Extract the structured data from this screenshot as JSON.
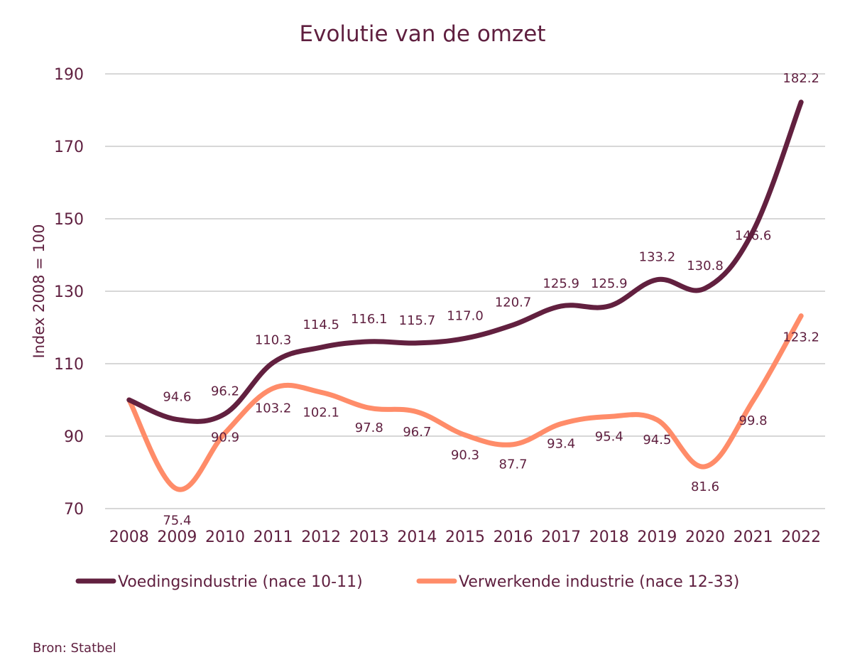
{
  "chart_data": {
    "type": "line",
    "title": "Evolutie van de omzet",
    "xlabel": "",
    "ylabel": "Index 2008 = 100",
    "ylim": [
      70,
      190
    ],
    "yticks": [
      70,
      90,
      110,
      130,
      150,
      170,
      190
    ],
    "grid": true,
    "smooth": true,
    "legend_position": "bottom",
    "categories": [
      "2008",
      "2009",
      "2010",
      "2011",
      "2012",
      "2013",
      "2014",
      "2015",
      "2016",
      "2017",
      "2018",
      "2019",
      "2020",
      "2021",
      "2022"
    ],
    "series": [
      {
        "name": "Voedingsindustrie (nace 10-11)",
        "color": "#62203f",
        "values": [
          100,
          94.6,
          96.2,
          110.3,
          114.5,
          116.1,
          115.7,
          117.0,
          120.7,
          125.9,
          125.9,
          133.2,
          130.8,
          146.6,
          182.2
        ],
        "labels": [
          null,
          "94.6",
          "96.2",
          "110.3",
          "114.5",
          "116.1",
          "115.7",
          "117.0",
          "120.7",
          "125.9",
          "125.9",
          "133.2",
          "130.8",
          "146.6",
          "182.2"
        ]
      },
      {
        "name": "Verwerkende industrie (nace 12-33)",
        "color": "#ff8c69",
        "values": [
          100,
          75.4,
          90.9,
          103.2,
          102.1,
          97.8,
          96.7,
          90.3,
          87.7,
          93.4,
          95.4,
          94.5,
          81.6,
          99.8,
          123.2
        ],
        "labels": [
          null,
          "75.4",
          "90.9",
          "103.2",
          "102.1",
          "97.8",
          "96.7",
          "90.3",
          "87.7",
          "93.4",
          "95.4",
          "94.5",
          "81.6",
          "99.8",
          "123.2"
        ]
      }
    ],
    "source": "Bron: Statbel"
  }
}
